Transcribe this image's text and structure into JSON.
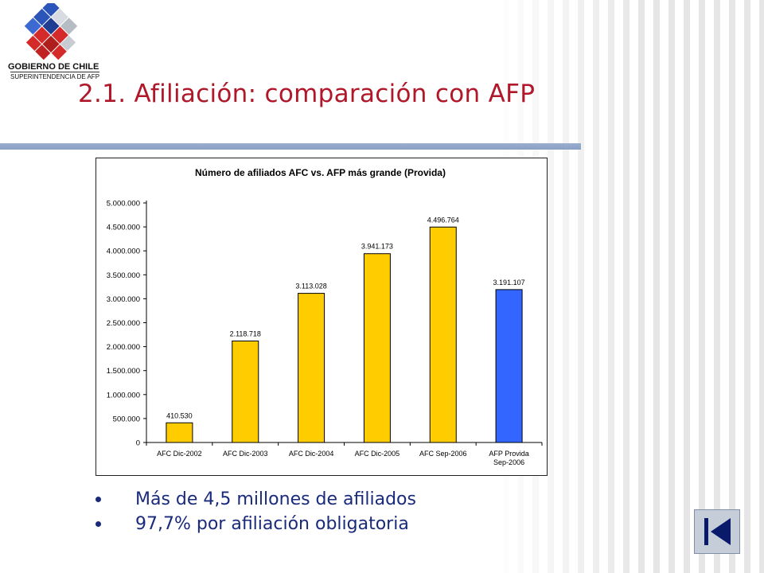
{
  "logo": {
    "title": "GOBIERNO DE CHILE",
    "subtitle": "SUPERINTENDENCIA DE AFP"
  },
  "page": {
    "title": "2.1. Afiliación: comparación con AFP"
  },
  "bullets": [
    "Más de 4,5 millones de afiliados",
    "97,7% por afiliación obligatoria"
  ],
  "nav": {
    "back_icon": "skip-back-icon"
  },
  "colors": {
    "title": "#b0182a",
    "bar_afc": "#ffcc00",
    "bar_afp": "#3366ff",
    "bullet_text": "#1a2a7a"
  },
  "chart_data": {
    "type": "bar",
    "title": "Número de afiliados AFC vs. AFP más grande (Provida)",
    "categories": [
      [
        "AFC Dic-2002"
      ],
      [
        "AFC Dic-2003"
      ],
      [
        "AFC Dic-2004"
      ],
      [
        "AFC Dic-2005"
      ],
      [
        "AFC Sep-2006"
      ],
      [
        "AFP Provida",
        "Sep-2006"
      ]
    ],
    "values": [
      410530,
      2118718,
      3113028,
      3941173,
      4496764,
      3191107
    ],
    "data_labels": [
      "410.530",
      "2.118.718",
      "3.113.028",
      "3.941.173",
      "4.496.764",
      "3.191.107"
    ],
    "bar_colors": [
      "#ffcc00",
      "#ffcc00",
      "#ffcc00",
      "#ffcc00",
      "#ffcc00",
      "#3366ff"
    ],
    "ylim": [
      0,
      5000000
    ],
    "yticks": [
      0,
      500000,
      1000000,
      1500000,
      2000000,
      2500000,
      3000000,
      3500000,
      4000000,
      4500000,
      5000000
    ],
    "ytick_labels": [
      "0",
      "500.000",
      "1.000.000",
      "1.500.000",
      "2.000.000",
      "2.500.000",
      "3.000.000",
      "3.500.000",
      "4.000.000",
      "4.500.000",
      "5.000.000"
    ],
    "xlabel": "",
    "ylabel": "",
    "grid": false,
    "legend": "none"
  }
}
